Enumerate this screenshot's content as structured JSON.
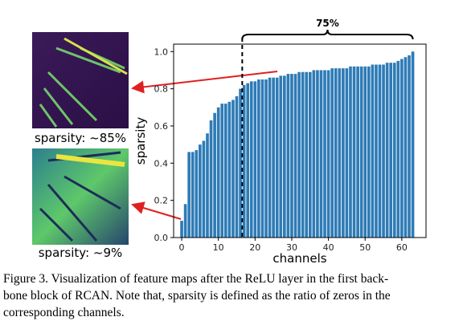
{
  "chart_data": {
    "type": "bar",
    "annotation": "75%",
    "xlabel": "channels",
    "ylabel": "sparsity",
    "color": "#2e7bb6",
    "divider_x": 16.5,
    "x": [
      0,
      1,
      2,
      3,
      4,
      5,
      6,
      7,
      8,
      9,
      10,
      11,
      12,
      13,
      14,
      15,
      16,
      17,
      18,
      19,
      20,
      21,
      22,
      23,
      24,
      25,
      26,
      27,
      28,
      29,
      30,
      31,
      32,
      33,
      34,
      35,
      36,
      37,
      38,
      39,
      40,
      41,
      42,
      43,
      44,
      45,
      46,
      47,
      48,
      49,
      50,
      51,
      52,
      53,
      54,
      55,
      56,
      57,
      58,
      59,
      60,
      61,
      62,
      63
    ],
    "values": [
      0.09,
      0.18,
      0.46,
      0.46,
      0.47,
      0.5,
      0.52,
      0.56,
      0.63,
      0.67,
      0.7,
      0.72,
      0.72,
      0.73,
      0.74,
      0.76,
      0.8,
      0.82,
      0.83,
      0.84,
      0.84,
      0.85,
      0.85,
      0.85,
      0.86,
      0.86,
      0.86,
      0.87,
      0.87,
      0.88,
      0.88,
      0.88,
      0.89,
      0.89,
      0.89,
      0.89,
      0.9,
      0.9,
      0.9,
      0.9,
      0.9,
      0.91,
      0.91,
      0.91,
      0.91,
      0.91,
      0.92,
      0.92,
      0.92,
      0.92,
      0.92,
      0.92,
      0.93,
      0.93,
      0.93,
      0.93,
      0.94,
      0.94,
      0.94,
      0.95,
      0.96,
      0.97,
      0.98,
      1.0
    ],
    "xlim": [
      -2.2,
      66.6
    ],
    "ylim": [
      0,
      1.04
    ],
    "xticks": [
      0,
      10,
      20,
      30,
      40,
      50,
      60
    ],
    "yticks": [
      {
        "value": 0,
        "label": "0.0"
      },
      {
        "value": 0.2,
        "label": "0.2"
      },
      {
        "value": 0.4,
        "label": "0.4"
      },
      {
        "value": 0.6,
        "label": "0.6"
      },
      {
        "value": 0.8,
        "label": "0.8"
      },
      {
        "value": 1,
        "label": "1.0"
      }
    ]
  },
  "panels": [
    {
      "label": "sparsity: ~85%"
    },
    {
      "label": "sparsity: ~9%"
    }
  ],
  "caption": [
    "Figure 3. Visualization of feature maps after the ReLU layer in the first back-",
    "bone block of RCAN. Note that, sparsity is defined as the ratio of zeros in the",
    "corresponding channels."
  ]
}
